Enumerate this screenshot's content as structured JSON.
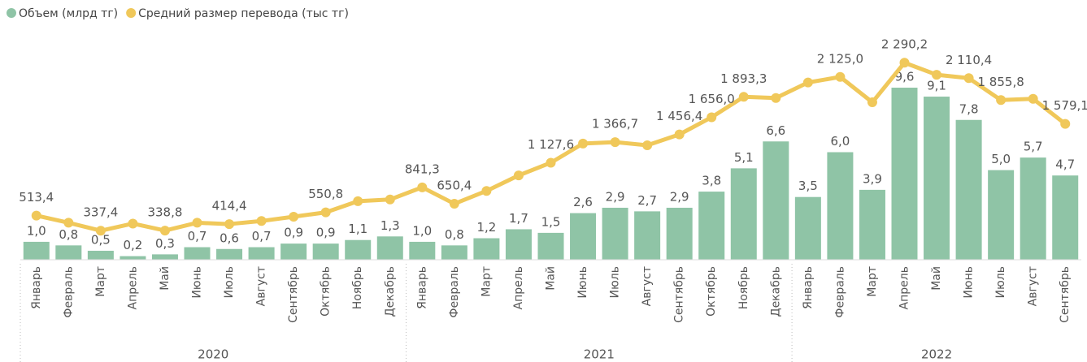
{
  "chart_data": {
    "type": "bar_line",
    "categories": [
      "Январь",
      "Февраль",
      "Март",
      "Апрель",
      "Май",
      "Июнь",
      "Июль",
      "Август",
      "Сентябрь",
      "Октябрь",
      "Ноябрь",
      "Декабрь",
      "Январь",
      "Февраль",
      "Март",
      "Апрель",
      "Май",
      "Июнь",
      "Июль",
      "Август",
      "Сентябрь",
      "Октябрь",
      "Ноябрь",
      "Декабрь",
      "Январь",
      "Февраль",
      "Март",
      "Апрель",
      "Май",
      "Июнь",
      "Июль",
      "Август",
      "Сентябрь"
    ],
    "category_groups": [
      {
        "name": "2020",
        "count": 12
      },
      {
        "name": "2021",
        "count": 12
      },
      {
        "name": "2022",
        "count": 9
      }
    ],
    "ylim": [
      0,
      12
    ],
    "y2lim": [
      0,
      2500
    ],
    "legend": "top-left",
    "series": [
      {
        "name": "Объем (млрд тг)",
        "color": "#8fc4a6",
        "kind": "bar",
        "values": [
          1.0,
          0.8,
          0.5,
          0.2,
          0.3,
          0.7,
          0.6,
          0.7,
          0.9,
          0.9,
          1.1,
          1.3,
          1.0,
          0.8,
          1.2,
          1.7,
          1.5,
          2.6,
          2.9,
          2.7,
          2.9,
          3.8,
          5.1,
          6.6,
          3.5,
          6.0,
          3.9,
          9.6,
          9.1,
          7.8,
          5.0,
          5.7,
          4.7
        ],
        "value_labels": [
          "1,0",
          "0,8",
          "0,5",
          "0,2",
          "0,3",
          "0,7",
          "0,6",
          "0,7",
          "0,9",
          "0,9",
          "1,1",
          "1,3",
          "1,0",
          "0,8",
          "1,2",
          "1,7",
          "1,5",
          "2,6",
          "2,9",
          "2,7",
          "2,9",
          "3,8",
          "5,1",
          "6,6",
          "3,5",
          "6,0",
          "3,9",
          "9,6",
          "9,1",
          "7,8",
          "5,0",
          "5,7",
          "4,7"
        ]
      },
      {
        "name": "Средний размер перевода (тыс тг)",
        "color": "#f0c85a",
        "kind": "line",
        "axis": "y2",
        "values": [
          513.4,
          430,
          337.4,
          420,
          338.8,
          430,
          414.4,
          450,
          500,
          550.8,
          680,
          700,
          841.3,
          650.4,
          800,
          980,
          1127.6,
          1350,
          1366.7,
          1330,
          1456.4,
          1656.0,
          1893.3,
          1880,
          2060,
          2125.0,
          1830,
          2290.2,
          2150,
          2110.4,
          1855.8,
          1870,
          1579.1
        ],
        "value_labels": [
          "513,4",
          null,
          "337,4",
          null,
          "338,8",
          null,
          "414,4",
          null,
          null,
          "550,8",
          null,
          null,
          "841,3",
          "650,4",
          null,
          null,
          "1 127,6",
          null,
          "1 366,7",
          null,
          "1 456,4",
          "1 656,0",
          "1 893,3",
          null,
          null,
          "2 125,0",
          null,
          "2 290,2",
          null,
          "2 110,4",
          "1 855,8",
          null,
          "1 579,1"
        ]
      }
    ]
  }
}
